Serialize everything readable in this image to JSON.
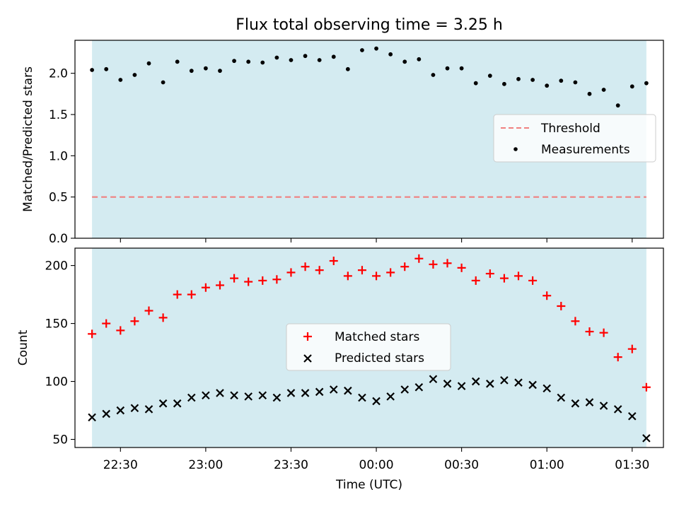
{
  "chart_data": [
    {
      "type": "scatter",
      "title": "Flux total observing time = 3.25 h",
      "xlabel": "",
      "ylabel": "Matched/Predicted stars",
      "xlim": [
        "22:14",
        "01:41"
      ],
      "ylim": [
        0,
        2.4
      ],
      "yticks": [
        "0.0",
        "0.5",
        "1.0",
        "1.5",
        "2.0"
      ],
      "x_times": [
        "22:30",
        "23:00",
        "23:30",
        "00:00",
        "00:30",
        "01:00",
        "01:30"
      ],
      "shaded_span": [
        "22:20",
        "01:35"
      ],
      "shade_color": "#d4ebf1",
      "threshold": 0.5,
      "threshold_color": "#f08080",
      "legend": [
        "Threshold",
        "Measurements"
      ],
      "legend_position": "center-right",
      "series": [
        {
          "name": "Measurements",
          "x": [
            "22:20",
            "22:25",
            "22:30",
            "22:35",
            "22:40",
            "22:45",
            "22:50",
            "22:55",
            "23:00",
            "23:05",
            "23:10",
            "23:15",
            "23:20",
            "23:25",
            "23:30",
            "23:35",
            "23:40",
            "23:45",
            "23:50",
            "23:55",
            "00:00",
            "00:05",
            "00:10",
            "00:15",
            "00:20",
            "00:25",
            "00:30",
            "00:35",
            "00:40",
            "00:45",
            "00:50",
            "00:55",
            "01:00",
            "01:05",
            "01:10",
            "01:15",
            "01:20",
            "01:25",
            "01:30",
            "01:35"
          ],
          "y": [
            2.04,
            2.05,
            1.92,
            1.98,
            2.12,
            1.89,
            2.14,
            2.03,
            2.06,
            2.03,
            2.15,
            2.14,
            2.13,
            2.19,
            2.16,
            2.21,
            2.16,
            2.2,
            2.05,
            2.28,
            2.3,
            2.23,
            2.14,
            2.17,
            1.98,
            2.06,
            2.06,
            1.88,
            1.97,
            1.87,
            1.93,
            1.92,
            1.85,
            1.91,
            1.89,
            1.75,
            1.8,
            1.61,
            1.84,
            1.88
          ]
        }
      ]
    },
    {
      "type": "scatter",
      "title": "",
      "xlabel": "Time (UTC)",
      "ylabel": "Count",
      "xlim": [
        "22:14",
        "01:41"
      ],
      "ylim": [
        43,
        215
      ],
      "yticks": [
        "50",
        "100",
        "150",
        "200"
      ],
      "x_times": [
        "22:30",
        "23:00",
        "23:30",
        "00:00",
        "00:30",
        "01:00",
        "01:30"
      ],
      "xticks": [
        "22:30",
        "23:00",
        "23:30",
        "00:00",
        "00:30",
        "01:00",
        "01:30"
      ],
      "shaded_span": [
        "22:20",
        "01:35"
      ],
      "shade_color": "#d4ebf1",
      "legend": [
        "Matched stars",
        "Predicted stars"
      ],
      "legend_position": "center",
      "series": [
        {
          "name": "Matched stars",
          "color": "#ff0000",
          "x": [
            "22:20",
            "22:25",
            "22:30",
            "22:35",
            "22:40",
            "22:45",
            "22:50",
            "22:55",
            "23:00",
            "23:05",
            "23:10",
            "23:15",
            "23:20",
            "23:25",
            "23:30",
            "23:35",
            "23:40",
            "23:45",
            "23:50",
            "23:55",
            "00:00",
            "00:05",
            "00:10",
            "00:15",
            "00:20",
            "00:25",
            "00:30",
            "00:35",
            "00:40",
            "00:45",
            "00:50",
            "00:55",
            "01:00",
            "01:05",
            "01:10",
            "01:15",
            "01:20",
            "01:25",
            "01:30",
            "01:35"
          ],
          "y": [
            141,
            150,
            144,
            152,
            161,
            155,
            175,
            175,
            181,
            183,
            189,
            186,
            187,
            188,
            194,
            199,
            196,
            204,
            191,
            196,
            191,
            194,
            199,
            206,
            201,
            202,
            198,
            187,
            193,
            189,
            191,
            187,
            174,
            165,
            152,
            143,
            142,
            121,
            128,
            95
          ]
        },
        {
          "name": "Predicted stars",
          "color": "#000000",
          "x": [
            "22:20",
            "22:25",
            "22:30",
            "22:35",
            "22:40",
            "22:45",
            "22:50",
            "22:55",
            "23:00",
            "23:05",
            "23:10",
            "23:15",
            "23:20",
            "23:25",
            "23:30",
            "23:35",
            "23:40",
            "23:45",
            "23:50",
            "23:55",
            "00:00",
            "00:05",
            "00:10",
            "00:15",
            "00:20",
            "00:25",
            "00:30",
            "00:35",
            "00:40",
            "00:45",
            "00:50",
            "00:55",
            "01:00",
            "01:05",
            "01:10",
            "01:15",
            "01:20",
            "01:25",
            "01:30",
            "01:35"
          ],
          "y": [
            69,
            72,
            75,
            77,
            76,
            81,
            81,
            86,
            88,
            90,
            88,
            87,
            88,
            86,
            90,
            90,
            91,
            93,
            92,
            86,
            83,
            87,
            93,
            95,
            102,
            98,
            96,
            100,
            98,
            101,
            99,
            97,
            94,
            86,
            81,
            82,
            79,
            76,
            70,
            51
          ]
        }
      ]
    }
  ]
}
